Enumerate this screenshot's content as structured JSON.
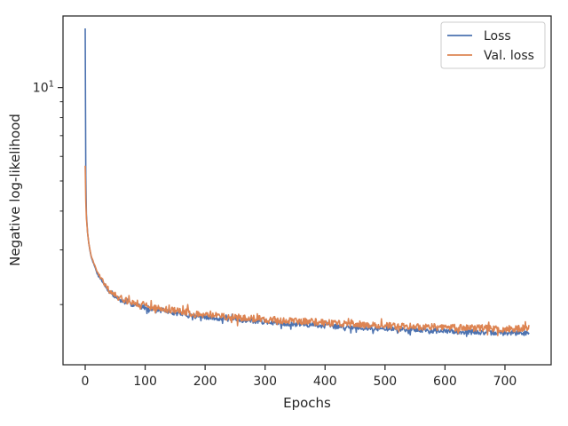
{
  "chart_data": {
    "type": "line",
    "xlabel": "Epochs",
    "ylabel": "Negative log-likelihood",
    "xlim": [
      -37,
      777
    ],
    "ylim": [
      1.28,
      17.0
    ],
    "yscale": "log",
    "x_ticks": [
      0,
      100,
      200,
      300,
      400,
      500,
      600,
      700
    ],
    "y_ticks": [
      {
        "value": 10,
        "base": "10",
        "exp": "1"
      }
    ],
    "grid": false,
    "legend_position": "top-right",
    "colors": {
      "loss": "#4c72b0",
      "val_loss": "#dd8452"
    },
    "series": [
      {
        "name": "Loss",
        "color": "#4c72b0",
        "x": [
          0,
          1,
          2,
          4,
          6,
          8,
          10,
          15,
          20,
          30,
          40,
          50,
          60,
          80,
          100,
          125,
          150,
          175,
          200,
          250,
          300,
          350,
          400,
          450,
          500,
          550,
          600,
          650,
          700,
          740
        ],
        "y": [
          15.5,
          5.2,
          3.9,
          3.4,
          3.15,
          2.98,
          2.85,
          2.68,
          2.52,
          2.35,
          2.2,
          2.12,
          2.06,
          2.0,
          1.96,
          1.92,
          1.88,
          1.85,
          1.82,
          1.79,
          1.76,
          1.73,
          1.71,
          1.69,
          1.67,
          1.66,
          1.64,
          1.63,
          1.62,
          1.62
        ]
      },
      {
        "name": "Val. loss",
        "color": "#dd8452",
        "x": [
          0,
          1,
          2,
          4,
          6,
          8,
          10,
          15,
          20,
          30,
          40,
          50,
          60,
          80,
          100,
          125,
          150,
          175,
          200,
          250,
          300,
          350,
          400,
          450,
          500,
          550,
          600,
          650,
          700,
          740
        ],
        "y": [
          5.6,
          4.3,
          3.8,
          3.4,
          3.15,
          3.0,
          2.87,
          2.7,
          2.55,
          2.38,
          2.23,
          2.15,
          2.09,
          2.03,
          1.99,
          1.95,
          1.91,
          1.88,
          1.85,
          1.82,
          1.79,
          1.77,
          1.75,
          1.73,
          1.71,
          1.7,
          1.69,
          1.68,
          1.67,
          1.67
        ]
      }
    ]
  }
}
